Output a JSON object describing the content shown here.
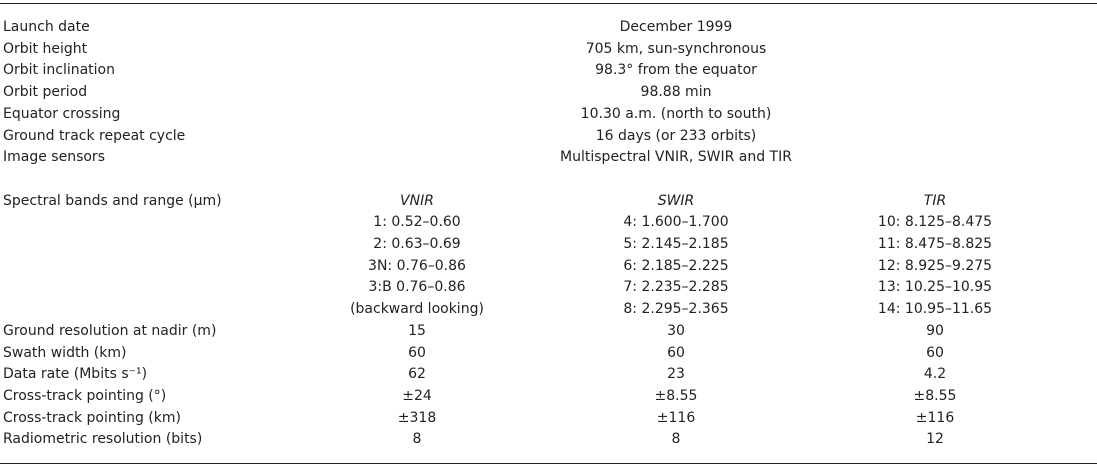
{
  "general": [
    {
      "label": "Launch date",
      "value": "December 1999"
    },
    {
      "label": "Orbit height",
      "value": "705 km, sun-synchronous"
    },
    {
      "label": "Orbit inclination",
      "value": "98.3° from the equator"
    },
    {
      "label": "Orbit period",
      "value": "98.88 min"
    },
    {
      "label": "Equator crossing",
      "value": "10.30 a.m. (north to south)"
    },
    {
      "label": "Ground track repeat cycle",
      "value": "16 days (or 233 orbits)"
    },
    {
      "label": "Image sensors",
      "value": "Multispectral VNIR, SWIR and TIR"
    }
  ],
  "spectral": {
    "label": "Spectral bands and range (µm)",
    "headers": [
      "VNIR",
      "SWIR",
      "TIR"
    ],
    "bands": [
      [
        "1: 0.52–0.60",
        "4: 1.600–1.700",
        "10: 8.125–8.475"
      ],
      [
        "2: 0.63–0.69",
        "5: 2.145–2.185",
        "11: 8.475–8.825"
      ],
      [
        "3N: 0.76–0.86",
        "6: 2.185–2.225",
        "12: 8.925–9.275"
      ],
      [
        "3:B 0.76–0.86",
        "7: 2.235–2.285",
        "13: 10.25–10.95"
      ],
      [
        "(backward looking)",
        "8: 2.295–2.365",
        "14: 10.95–11.65"
      ]
    ]
  },
  "rows": [
    {
      "label": "Ground resolution at nadir (m)",
      "values": [
        "15",
        "30",
        "90"
      ]
    },
    {
      "label": "Swath width (km)",
      "values": [
        "60",
        "60",
        "60"
      ]
    },
    {
      "label": "Data rate (Mbits s⁻¹)",
      "values": [
        "62",
        "23",
        "4.2"
      ]
    },
    {
      "label": "Cross-track pointing (°)",
      "values": [
        "±24",
        "±8.55",
        "±8.55"
      ]
    },
    {
      "label": "Cross-track pointing (km)",
      "values": [
        "±318",
        "±116",
        "±116"
      ]
    },
    {
      "label": "Radiometric resolution (bits)",
      "values": [
        "8",
        "8",
        "12"
      ]
    }
  ]
}
